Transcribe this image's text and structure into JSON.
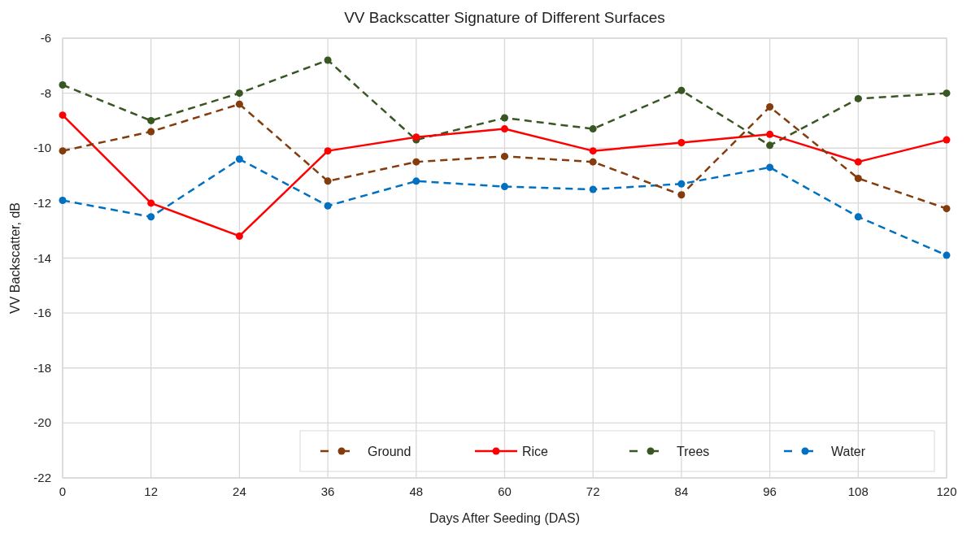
{
  "chart_data": {
    "type": "line",
    "title": "VV Backscatter Signature of Different Surfaces",
    "xlabel": "Days After Seeding (DAS)",
    "ylabel": "VV Backscatter, dB",
    "x": [
      0,
      12,
      24,
      36,
      48,
      60,
      72,
      84,
      96,
      108,
      120
    ],
    "xlim": [
      0,
      120
    ],
    "xticks": [
      0,
      12,
      24,
      36,
      48,
      60,
      72,
      84,
      96,
      108,
      120
    ],
    "ylim": [
      -22,
      -6
    ],
    "yticks": [
      -22,
      -20,
      -18,
      -16,
      -14,
      -12,
      -10,
      -8,
      -6
    ],
    "grid": true,
    "legend": "bottom right",
    "marker": "circle",
    "series": [
      {
        "name": "Ground",
        "color": "#843c0c",
        "line_style": "dashed",
        "values": [
          -10.1,
          -9.4,
          -8.4,
          -11.2,
          -10.5,
          -10.3,
          -10.5,
          -11.7,
          -8.5,
          -11.1,
          -12.2
        ]
      },
      {
        "name": "Rice",
        "color": "#ff0000",
        "line_style": "solid",
        "values": [
          -8.8,
          -12.0,
          -13.2,
          -10.1,
          -9.6,
          -9.3,
          -10.1,
          -9.8,
          -9.5,
          -10.5,
          -9.7
        ]
      },
      {
        "name": "Trees",
        "color": "#385723",
        "line_style": "dashed",
        "values": [
          -7.7,
          -9.0,
          -8.0,
          -6.8,
          -9.7,
          -8.9,
          -9.3,
          -7.9,
          -9.9,
          -8.2,
          -8.0
        ]
      },
      {
        "name": "Water",
        "color": "#0070c0",
        "line_style": "dashed",
        "values": [
          -11.9,
          -12.5,
          -10.4,
          -12.1,
          -11.2,
          -11.4,
          -11.5,
          -11.3,
          -10.7,
          -12.5,
          -13.9
        ]
      }
    ]
  }
}
